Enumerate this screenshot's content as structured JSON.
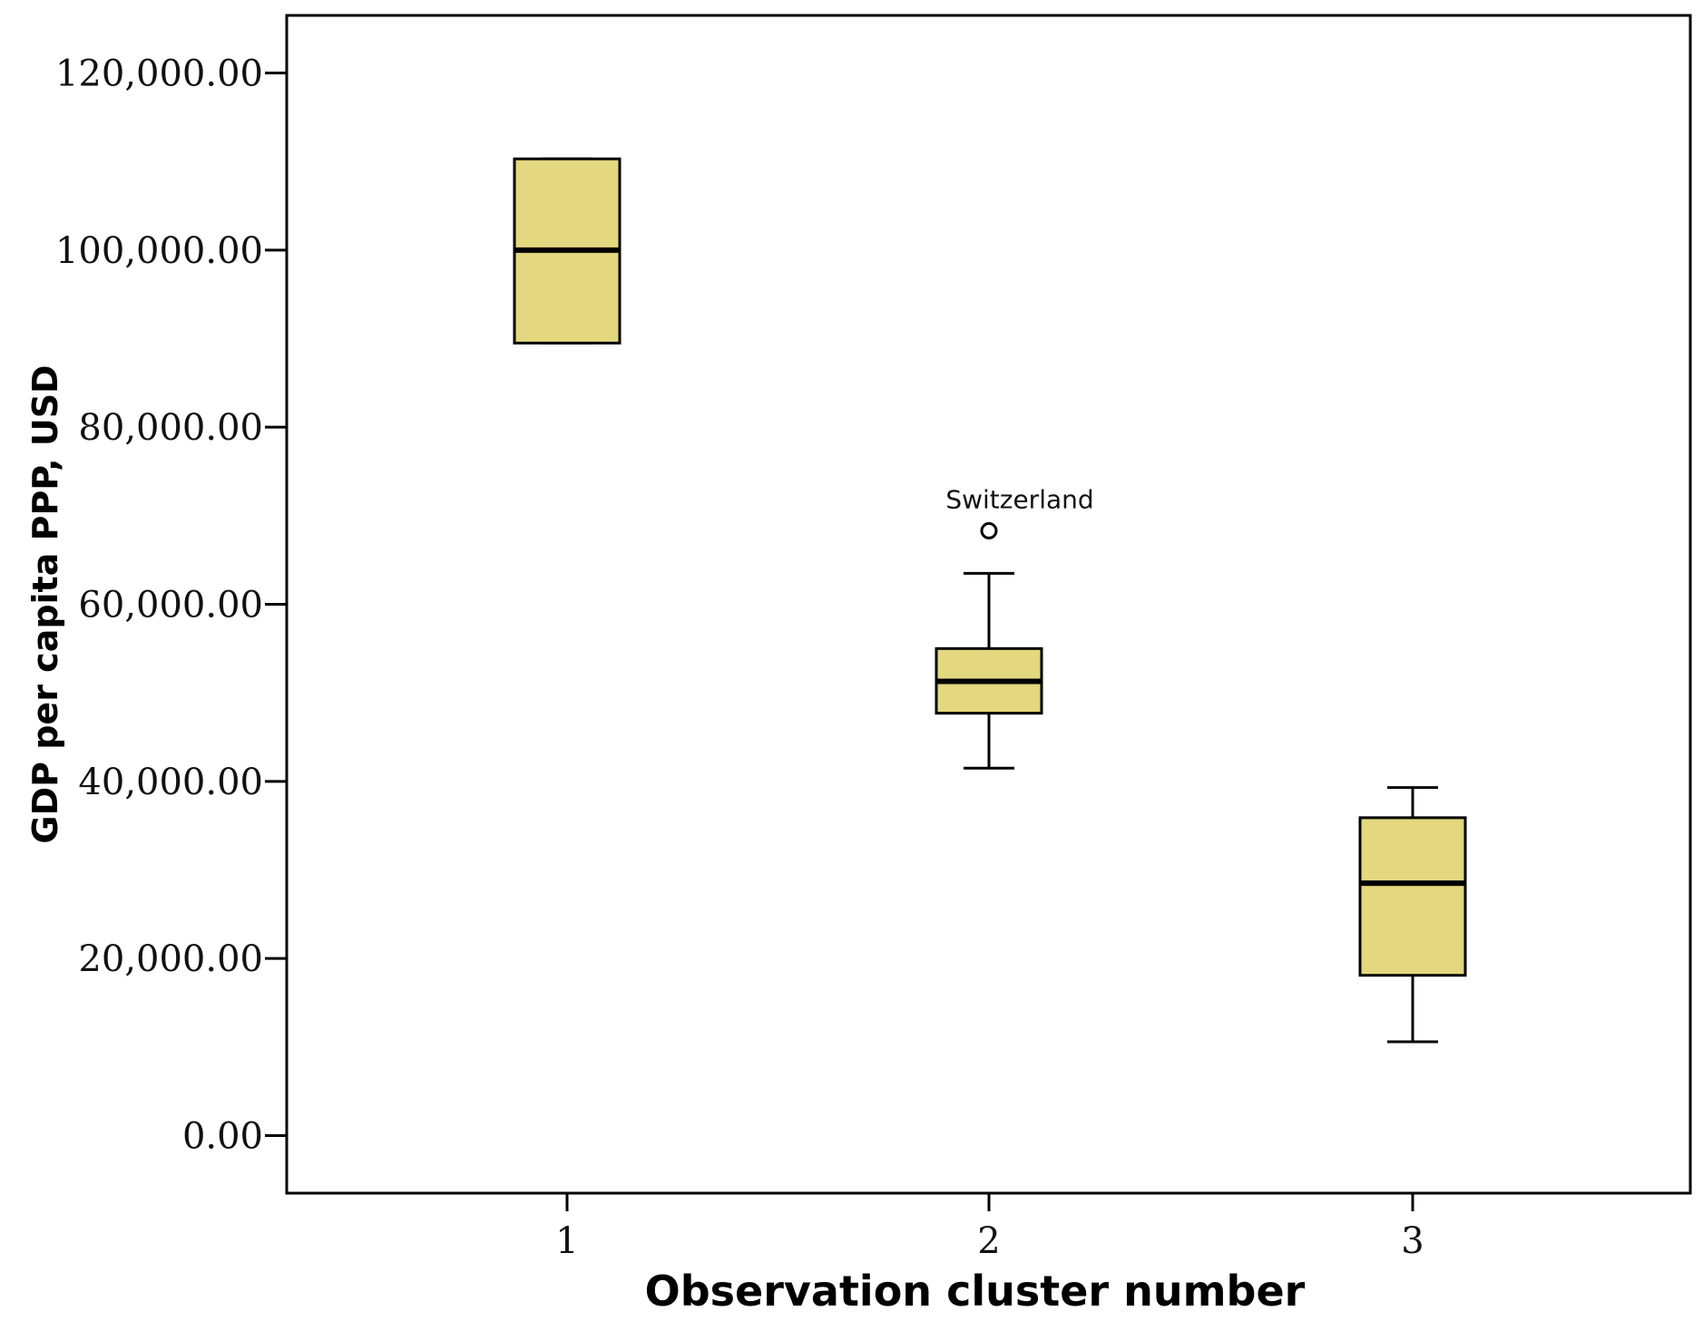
{
  "chart_data": {
    "type": "boxplot",
    "xlabel": "Observation cluster number",
    "ylabel": "GDP per capita PPP, USD",
    "ylim": [
      -6500,
      126500
    ],
    "yticks": [
      0,
      20000,
      40000,
      60000,
      80000,
      100000,
      120000
    ],
    "ytick_labels": [
      "0.00",
      "20,000.00",
      "40,000.00",
      "60,000.00",
      "80,000.00",
      "100,000.00",
      "120,000.00"
    ],
    "categories": [
      "1",
      "2",
      "3"
    ],
    "box_color": "#e3d77f",
    "stroke_color": "#000000",
    "boxes": [
      {
        "category": "1",
        "min": 89500,
        "q1": 89500,
        "median": 100000,
        "q3": 110300,
        "max": 110300
      },
      {
        "category": "2",
        "min": 41500,
        "q1": 47700,
        "median": 51300,
        "q3": 55000,
        "max": 63500
      },
      {
        "category": "3",
        "min": 10600,
        "q1": 18100,
        "median": 28500,
        "q3": 35900,
        "max": 39300
      }
    ],
    "outliers": [
      {
        "category": "2",
        "value": 68300,
        "label": "Switzerland"
      }
    ]
  }
}
